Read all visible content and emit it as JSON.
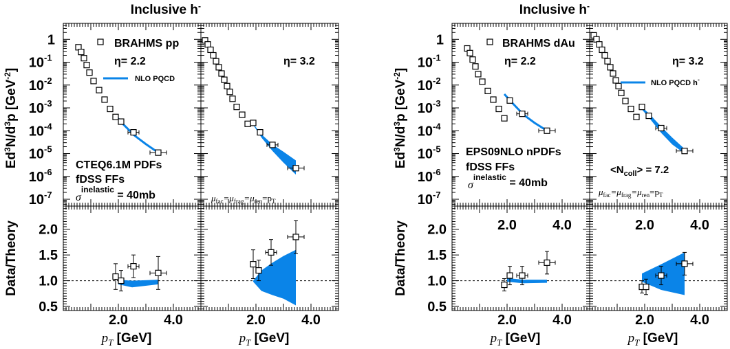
{
  "chart_data": [
    {
      "type": "scatter",
      "panel": "top-left",
      "header": "Inclusive h",
      "header_sup": "-",
      "yscale": "log",
      "ylim": [
        5e-08,
        5
      ],
      "xlim": [
        0,
        5
      ],
      "ylabel_parts": [
        "Ed",
        "3",
        "N/d",
        "3",
        "p [GeV",
        "-2",
        "]"
      ],
      "ytick_labels": [
        {
          "v": 1,
          "base": "1",
          "exp": ""
        },
        {
          "v": 0.1,
          "base": "10",
          "exp": "-1"
        },
        {
          "v": 0.01,
          "base": "10",
          "exp": "-2"
        },
        {
          "v": 0.001,
          "base": "10",
          "exp": "-3"
        },
        {
          "v": 0.0001,
          "base": "10",
          "exp": "-4"
        },
        {
          "v": 1e-05,
          "base": "10",
          "exp": "-5"
        },
        {
          "v": 1e-06,
          "base": "10",
          "exp": "-6"
        },
        {
          "v": 1e-07,
          "base": "10",
          "exp": "-7"
        }
      ],
      "legend": [
        {
          "name": "BRAHMS pp",
          "kind": "marker"
        },
        {
          "name": "NLO PQCD",
          "kind": "line"
        }
      ],
      "eta_label": "η= 2.2",
      "annotations": [
        "CTEQ6.1M PDFs",
        "fDSS FFs"
      ],
      "sigma_text": "σ",
      "sigma_sup": "inelastic",
      "sigma_value": "= 40mb",
      "series": [
        {
          "name": "BRAHMS pp",
          "x": [
            0.55,
            0.65,
            0.75,
            0.85,
            0.95,
            1.1,
            1.3,
            1.5,
            1.7,
            1.9,
            2.1,
            2.55,
            3.45
          ],
          "y": [
            0.45,
            0.28,
            0.15,
            0.075,
            0.035,
            0.015,
            0.006,
            0.0023,
            0.0009,
            0.0004,
            0.00025,
            8.5e-05,
            1.1e-05
          ],
          "xerr": [
            0,
            0,
            0,
            0,
            0,
            0,
            0,
            0,
            0,
            0,
            0.1,
            0.2,
            0.3
          ]
        }
      ],
      "band_x": [
        1.9,
        2.2,
        2.6,
        3.0,
        3.45
      ],
      "band_y": [
        0.00045,
        0.00018,
        6e-05,
        2.6e-05,
        1.1e-05
      ]
    },
    {
      "type": "scatter",
      "panel": "top-second",
      "yscale": "log",
      "eta_label": "η= 3.2",
      "mu_label": "μ_fac=μ_frag=μ_ren=p_T",
      "series": [
        {
          "name": "BRAHMS pp",
          "x": [
            0.15,
            0.25,
            0.35,
            0.45,
            0.55,
            0.65,
            0.75,
            0.85,
            0.95,
            1.05,
            1.15,
            1.3,
            1.5,
            1.7,
            1.9,
            2.15,
            2.6,
            3.45
          ],
          "y": [
            0.9,
            0.6,
            0.35,
            0.2,
            0.11,
            0.06,
            0.032,
            0.017,
            0.009,
            0.005,
            0.0025,
            0.0011,
            0.0005,
            0.0002,
            0.00022,
            8.5e-05,
            2.4e-05,
            2.3e-06
          ],
          "xerr": [
            0,
            0,
            0,
            0,
            0,
            0,
            0,
            0,
            0,
            0,
            0,
            0,
            0,
            0,
            0,
            0.1,
            0.2,
            0.3
          ]
        }
      ],
      "band_x": [
        1.9,
        2.2,
        2.6,
        3.0,
        3.45
      ],
      "band_upper": [
        0.0002,
        7e-05,
        2.5e-05,
        1.2e-05,
        5e-06
      ],
      "band_lower": [
        0.00018,
        5e-05,
        1.3e-05,
        4e-06,
        1.2e-06
      ]
    },
    {
      "type": "scatter",
      "panel": "bottom-left",
      "ylabel": "Data/Theory",
      "ylim": [
        0.5,
        2.4
      ],
      "ytick_labels": [
        "0.5",
        "1.0",
        "1.5",
        "2.0"
      ],
      "xtick_labels": [
        "2.0",
        "4.0"
      ],
      "xlabel": "p_T [GeV]",
      "series": [
        {
          "name": "ratio",
          "x": [
            1.9,
            2.1,
            2.55,
            3.45
          ],
          "y": [
            1.08,
            1.0,
            1.28,
            1.15
          ],
          "yerr": [
            0.25,
            0.2,
            0.22,
            0.32
          ],
          "xerr": [
            0,
            0.1,
            0.2,
            0.3
          ]
        }
      ],
      "band_x": [
        2.0,
        2.5,
        3.45
      ],
      "band_upper": [
        1.02,
        1.0,
        1.02
      ],
      "band_lower": [
        0.93,
        0.87,
        0.93
      ]
    },
    {
      "type": "scatter",
      "panel": "bottom-second",
      "xtick_labels": [
        "2.0",
        "4.0"
      ],
      "xlabel": "p_T [GeV]",
      "series": [
        {
          "name": "ratio",
          "x": [
            1.9,
            2.1,
            2.55,
            3.45
          ],
          "y": [
            1.32,
            1.2,
            1.55,
            1.85
          ],
          "yerr": [
            0.28,
            0.2,
            0.25,
            0.32
          ],
          "xerr": [
            0,
            0.1,
            0.2,
            0.3
          ]
        }
      ],
      "band_x": [
        1.9,
        2.2,
        2.6,
        3.0,
        3.45
      ],
      "band_upper": [
        1.0,
        1.2,
        1.35,
        1.48,
        1.6
      ],
      "band_lower": [
        0.98,
        0.8,
        0.72,
        0.65,
        0.52
      ]
    },
    {
      "type": "scatter",
      "panel": "top-third",
      "header": "Inclusive h",
      "header_sup": "-",
      "yscale": "log",
      "ylabel_parts": [
        "Ed",
        "3",
        "N/d",
        "3",
        "p [GeV",
        "-2",
        "]"
      ],
      "legend": [
        {
          "name": "BRAHMS dAu",
          "kind": "marker"
        }
      ],
      "eta_label": "η= 2.2",
      "annotations": [
        "EPS09NLO nPDFs",
        "fDSS FFs"
      ],
      "sigma_text": "σ",
      "sigma_sup": "inelastic",
      "sigma_value": "= 40mb",
      "series": [
        {
          "name": "BRAHMS dAu",
          "x": [
            0.55,
            0.65,
            0.75,
            0.85,
            0.95,
            1.1,
            1.3,
            1.5,
            1.7,
            1.9,
            2.1,
            2.55,
            3.45
          ],
          "y": [
            0.4,
            0.25,
            0.13,
            0.065,
            0.03,
            0.014,
            0.0055,
            0.0023,
            0.0009,
            0.00035,
            0.0021,
            0.00055,
            0.0001
          ],
          "xerr": [
            0,
            0,
            0,
            0,
            0,
            0,
            0,
            0,
            0,
            0,
            0.1,
            0.2,
            0.3
          ]
        }
      ],
      "band_x": [
        1.9,
        2.2,
        2.6,
        3.0,
        3.45
      ],
      "band_y": [
        0.004,
        0.0016,
        0.0005,
        0.00022,
        0.0001
      ]
    },
    {
      "type": "scatter",
      "panel": "top-fourth",
      "yscale": "log",
      "legend": [
        {
          "name": "NLO PQCD h",
          "sup": "-",
          "kind": "line"
        }
      ],
      "eta_label": "η= 3.2",
      "ncoll_text": "<N",
      "ncoll_sub": "coll",
      "ncoll_value": "> = 7.2",
      "mu_label": "μ_fac=μ_frag=μ_ren=p_T",
      "series": [
        {
          "name": "BRAHMS dAu",
          "x": [
            0.15,
            0.25,
            0.35,
            0.45,
            0.55,
            0.65,
            0.75,
            0.85,
            0.95,
            1.05,
            1.15,
            1.3,
            1.5,
            1.7,
            1.9,
            2.15,
            2.6,
            3.45
          ],
          "y": [
            1.5,
            1.0,
            0.6,
            0.35,
            0.2,
            0.11,
            0.06,
            0.032,
            0.016,
            0.009,
            0.0045,
            0.002,
            0.0009,
            0.0004,
            0.0011,
            0.00045,
            0.00013,
            1.3e-05
          ],
          "xerr": [
            0,
            0,
            0,
            0,
            0,
            0,
            0,
            0,
            0,
            0,
            0,
            0,
            0,
            0,
            0,
            0.1,
            0.2,
            0.3
          ]
        }
      ],
      "band_x": [
        1.9,
        2.2,
        2.6,
        3.0,
        3.45
      ],
      "band_upper": [
        0.0011,
        0.0005,
        0.00015,
        5e-05,
        1.6e-05
      ],
      "band_lower": [
        0.00085,
        0.00032,
        8e-05,
        2.5e-05,
        1e-05
      ]
    },
    {
      "type": "scatter",
      "panel": "bottom-third",
      "ylabel": "Data/Theory",
      "ytick_labels": [
        "0.5",
        "1.0",
        "1.5",
        "2.0"
      ],
      "xtick_labels": [
        "2.0",
        "4.0"
      ],
      "top_tick_labels": [
        "2.0",
        "4.0"
      ],
      "xlabel": "p_T [GeV]",
      "series": [
        {
          "name": "ratio",
          "x": [
            1.9,
            2.1,
            2.55,
            3.45
          ],
          "y": [
            0.92,
            1.1,
            1.1,
            1.35
          ],
          "yerr": [
            0.12,
            0.18,
            0.18,
            0.22
          ],
          "xerr": [
            0,
            0.1,
            0.2,
            0.3
          ]
        }
      ],
      "band_x": [
        2.0,
        2.6,
        3.45
      ],
      "band_upper": [
        1.05,
        1.02,
        1.02
      ],
      "band_lower": [
        0.98,
        0.95,
        0.96
      ]
    },
    {
      "type": "scatter",
      "panel": "bottom-fourth",
      "xtick_labels": [
        "2.0",
        "4.0"
      ],
      "top_tick_labels": [
        "2.0",
        "4.0"
      ],
      "xlabel": "p_T [GeV]",
      "series": [
        {
          "name": "ratio",
          "x": [
            1.9,
            2.05,
            2.6,
            3.45
          ],
          "y": [
            0.88,
            0.88,
            1.1,
            1.33
          ],
          "yerr": [
            0.12,
            0.15,
            0.18,
            0.22
          ],
          "xerr": [
            0,
            0.1,
            0.2,
            0.3
          ]
        }
      ],
      "band_x": [
        1.9,
        2.6,
        3.45
      ],
      "band_upper": [
        1.14,
        1.32,
        1.55
      ],
      "band_lower": [
        0.98,
        0.82,
        0.72
      ]
    }
  ],
  "colors": {
    "band": "#0a84e8",
    "axis": "#000000",
    "marker_fill": "#ffffff"
  }
}
